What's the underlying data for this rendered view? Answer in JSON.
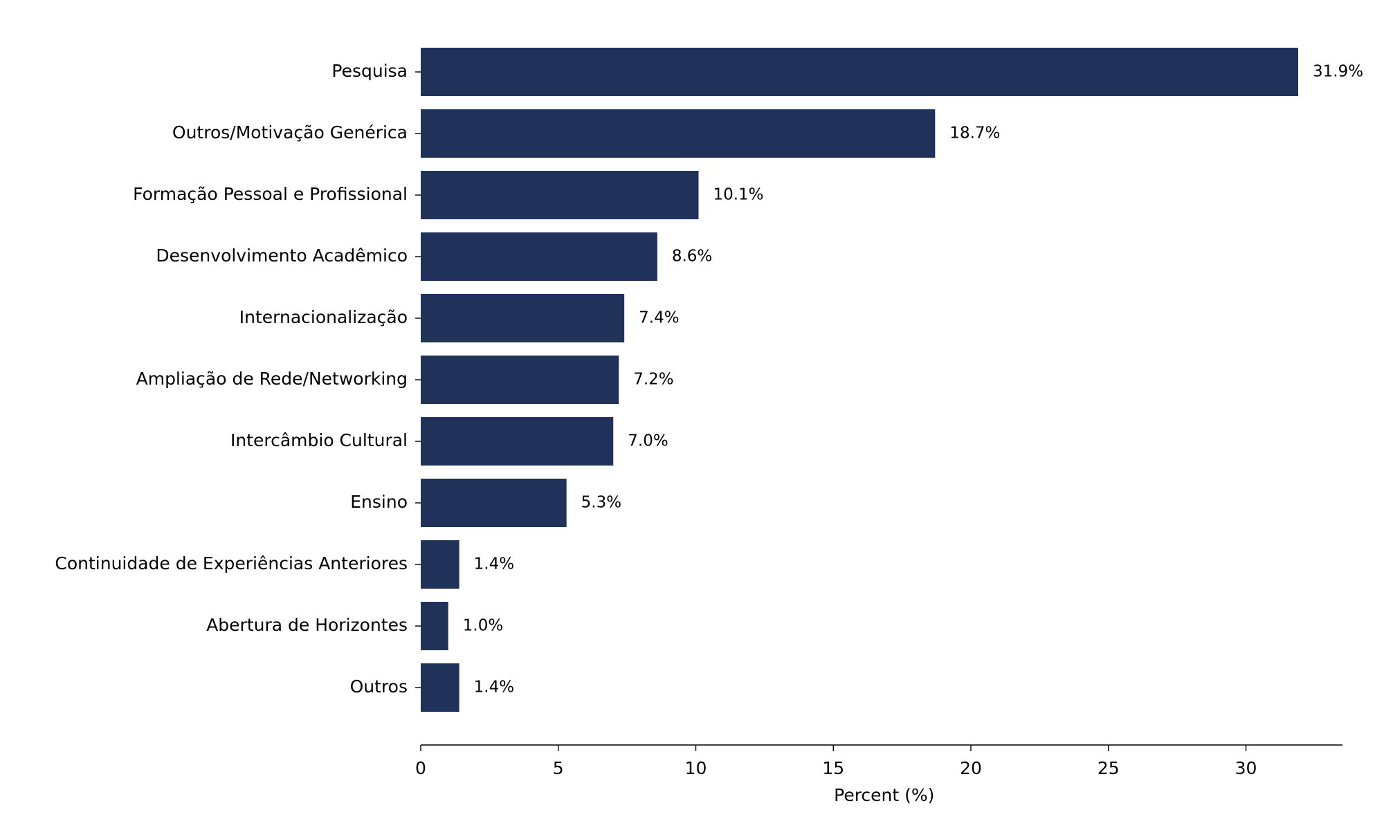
{
  "chart_data": {
    "type": "bar",
    "orientation": "horizontal",
    "title": "",
    "xlabel": "Percent (%)",
    "ylabel": "",
    "categories": [
      "Pesquisa",
      "Outros/Motivação Genérica",
      "Formação Pessoal e Profissional",
      "Desenvolvimento Acadêmico",
      "Internacionalização",
      "Ampliação de Rede/Networking",
      "Intercâmbio Cultural",
      "Ensino",
      "Continuidade de Experiências Anteriores",
      "Abertura de Horizontes",
      "Outros"
    ],
    "values": [
      31.9,
      18.7,
      10.1,
      8.6,
      7.4,
      7.2,
      7.0,
      5.3,
      1.4,
      1.0,
      1.4
    ],
    "value_labels": [
      "31.9%",
      "18.7%",
      "10.1%",
      "8.6%",
      "7.4%",
      "7.2%",
      "7.0%",
      "5.3%",
      "1.4%",
      "1.0%",
      "1.4%"
    ],
    "xlim": [
      0,
      33.5
    ],
    "xticks": [
      0,
      5,
      10,
      15,
      20,
      25,
      30
    ],
    "xtick_labels": [
      "0",
      "5",
      "10",
      "15",
      "20",
      "25",
      "30"
    ],
    "grid": false,
    "legend": "none",
    "bar_color": "#21325a"
  }
}
